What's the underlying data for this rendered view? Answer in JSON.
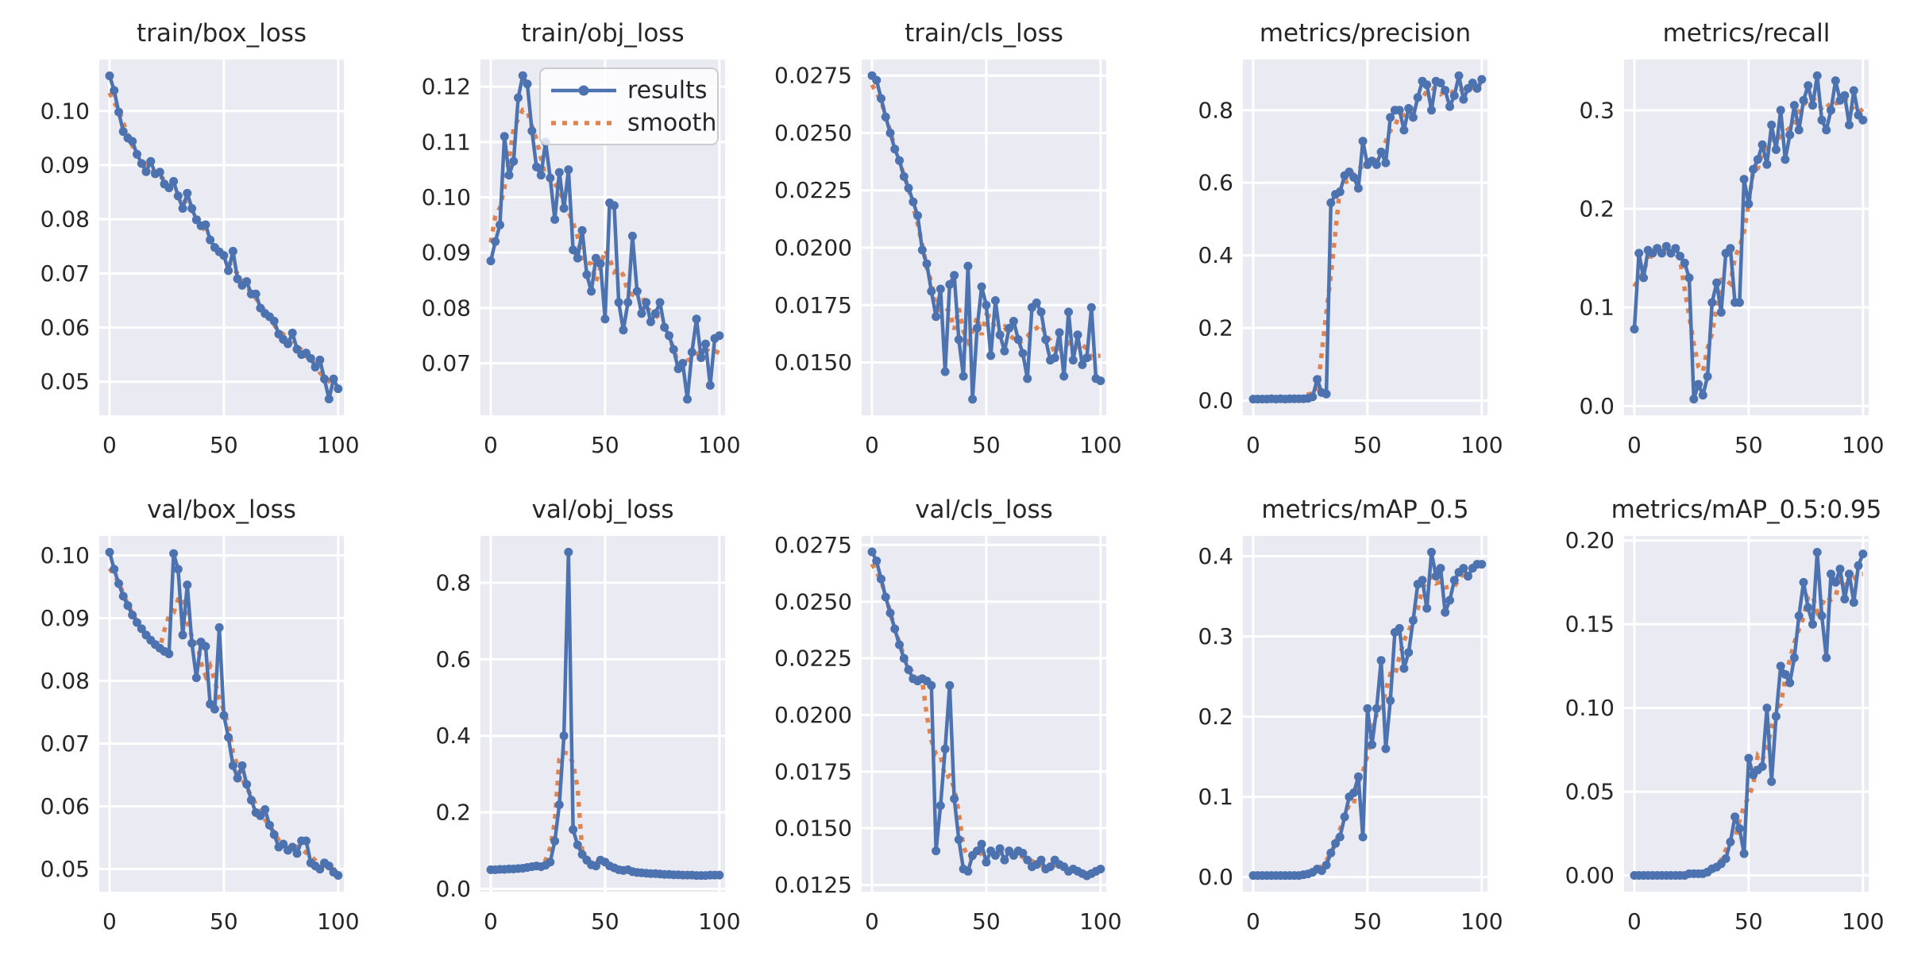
{
  "figure": {
    "background": "#ffffff",
    "axes_background": "#eaeaf2",
    "grid_color": "#ffffff",
    "text_color": "#262626",
    "results_color": "#4c72b0",
    "smooth_color": "#dd8452",
    "legend_face": "#ffffff",
    "legend_edge": "#cccccc"
  },
  "legend": {
    "entries": [
      {
        "label": "results",
        "style": "solid-line-circle-marker",
        "color": "#4c72b0"
      },
      {
        "label": "smooth",
        "style": "dotted-line",
        "color": "#dd8452"
      }
    ],
    "shown_on_chart": "train/obj_loss"
  },
  "chart_data": {
    "type": "line",
    "grid": true,
    "legend_position": "upper-right-of-second-chart",
    "epochs": [
      0,
      2,
      4,
      6,
      8,
      10,
      12,
      14,
      16,
      18,
      20,
      22,
      24,
      26,
      28,
      30,
      32,
      34,
      36,
      38,
      40,
      42,
      44,
      46,
      48,
      50,
      52,
      54,
      56,
      58,
      60,
      62,
      64,
      66,
      68,
      70,
      72,
      74,
      76,
      78,
      80,
      82,
      84,
      86,
      88,
      90,
      92,
      94,
      96,
      98,
      100
    ],
    "smooth_series_note": "dotted orange 'smooth' curve is the moving-average of 'results'",
    "charts": [
      {
        "title": "train/box_loss",
        "xticks": [
          "0",
          "50",
          "100"
        ],
        "yticks": [
          "0.05",
          "0.06",
          "0.07",
          "0.08",
          "0.09",
          "0.10"
        ],
        "xlim": [
          -4.5,
          102.5
        ],
        "ylim": [
          0.0438,
          0.1095
        ],
        "legend": false,
        "values": [
          0.1065,
          0.1038,
          0.0998,
          0.0962,
          0.095,
          0.0944,
          0.092,
          0.0903,
          0.0888,
          0.0907,
          0.0884,
          0.0887,
          0.0865,
          0.0858,
          0.087,
          0.0843,
          0.082,
          0.0848,
          0.082,
          0.0799,
          0.0788,
          0.079,
          0.0762,
          0.0748,
          0.074,
          0.0733,
          0.0705,
          0.0741,
          0.069,
          0.0678,
          0.0685,
          0.0662,
          0.0662,
          0.0636,
          0.0626,
          0.062,
          0.0612,
          0.0588,
          0.0578,
          0.057,
          0.059,
          0.056,
          0.055,
          0.0553,
          0.0543,
          0.0527,
          0.054,
          0.0505,
          0.0468,
          0.0505,
          0.0487
        ]
      },
      {
        "title": "train/obj_loss",
        "xticks": [
          "0",
          "50",
          "100"
        ],
        "yticks": [
          "0.07",
          "0.08",
          "0.09",
          "0.10",
          "0.11",
          "0.12"
        ],
        "xlim": [
          -4.5,
          102.5
        ],
        "ylim": [
          0.0606,
          0.1249
        ],
        "legend": true,
        "values": [
          0.0885,
          0.092,
          0.095,
          0.111,
          0.104,
          0.1065,
          0.118,
          0.122,
          0.1205,
          0.112,
          0.1055,
          0.104,
          0.11,
          0.1035,
          0.096,
          0.1045,
          0.098,
          0.105,
          0.0905,
          0.089,
          0.094,
          0.086,
          0.083,
          0.089,
          0.088,
          0.078,
          0.099,
          0.0985,
          0.081,
          0.076,
          0.081,
          0.093,
          0.083,
          0.079,
          0.081,
          0.0775,
          0.079,
          0.081,
          0.0765,
          0.075,
          0.0725,
          0.069,
          0.07,
          0.0635,
          0.072,
          0.078,
          0.071,
          0.0735,
          0.066,
          0.0745,
          0.075
        ]
      },
      {
        "title": "train/cls_loss",
        "xticks": [
          "0",
          "50",
          "100"
        ],
        "yticks": [
          "0.0150",
          "0.0175",
          "0.0200",
          "0.0225",
          "0.0250",
          "0.0275"
        ],
        "xlim": [
          -4.5,
          102.5
        ],
        "ylim": [
          0.0127,
          0.0282
        ],
        "legend": false,
        "values": [
          0.0275,
          0.0273,
          0.0265,
          0.0257,
          0.025,
          0.0243,
          0.0238,
          0.0231,
          0.0226,
          0.022,
          0.0214,
          0.0199,
          0.0193,
          0.0181,
          0.017,
          0.0182,
          0.0146,
          0.0184,
          0.0188,
          0.016,
          0.0144,
          0.0192,
          0.0134,
          0.0165,
          0.0183,
          0.0175,
          0.0153,
          0.0177,
          0.0162,
          0.0155,
          0.0165,
          0.0168,
          0.016,
          0.0154,
          0.0143,
          0.0174,
          0.0176,
          0.0172,
          0.016,
          0.0151,
          0.0152,
          0.0163,
          0.0144,
          0.0172,
          0.0151,
          0.0162,
          0.0149,
          0.0152,
          0.0174,
          0.0143,
          0.0142
        ]
      },
      {
        "title": "metrics/precision",
        "xticks": [
          "0",
          "50",
          "100"
        ],
        "yticks": [
          "0.0",
          "0.2",
          "0.4",
          "0.6",
          "0.8"
        ],
        "xlim": [
          -4.5,
          102.5
        ],
        "ylim": [
          -0.0406,
          0.9396
        ],
        "legend": false,
        "values": [
          0.004,
          0.004,
          0.004,
          0.004,
          0.005,
          0.004,
          0.005,
          0.004,
          0.005,
          0.005,
          0.005,
          0.005,
          0.006,
          0.01,
          0.058,
          0.022,
          0.018,
          0.545,
          0.568,
          0.575,
          0.62,
          0.63,
          0.615,
          0.585,
          0.715,
          0.65,
          0.66,
          0.65,
          0.685,
          0.655,
          0.78,
          0.8,
          0.8,
          0.745,
          0.805,
          0.78,
          0.835,
          0.88,
          0.87,
          0.8,
          0.88,
          0.875,
          0.855,
          0.81,
          0.84,
          0.895,
          0.83,
          0.86,
          0.875,
          0.86,
          0.885
        ]
      },
      {
        "title": "metrics/recall",
        "xticks": [
          "0",
          "50",
          "100"
        ],
        "yticks": [
          "0.0",
          "0.1",
          "0.2",
          "0.3"
        ],
        "xlim": [
          -4.5,
          102.5
        ],
        "ylim": [
          -0.0094,
          0.3514
        ],
        "legend": false,
        "values": [
          0.078,
          0.155,
          0.13,
          0.158,
          0.155,
          0.16,
          0.155,
          0.162,
          0.155,
          0.16,
          0.152,
          0.145,
          0.13,
          0.007,
          0.022,
          0.011,
          0.03,
          0.105,
          0.125,
          0.095,
          0.155,
          0.16,
          0.105,
          0.105,
          0.23,
          0.205,
          0.24,
          0.25,
          0.265,
          0.245,
          0.285,
          0.26,
          0.3,
          0.25,
          0.275,
          0.305,
          0.28,
          0.31,
          0.325,
          0.305,
          0.335,
          0.29,
          0.28,
          0.3,
          0.33,
          0.31,
          0.315,
          0.285,
          0.32,
          0.295,
          0.29
        ]
      },
      {
        "title": "val/box_loss",
        "xticks": [
          "0",
          "50",
          "100"
        ],
        "yticks": [
          "0.05",
          "0.06",
          "0.07",
          "0.08",
          "0.09",
          "0.10"
        ],
        "xlim": [
          -4.5,
          102.5
        ],
        "ylim": [
          0.0464,
          0.1031
        ],
        "legend": false,
        "values": [
          0.1005,
          0.0978,
          0.0955,
          0.0935,
          0.092,
          0.0905,
          0.0893,
          0.0883,
          0.0873,
          0.0865,
          0.0858,
          0.0852,
          0.0847,
          0.0843,
          0.1003,
          0.0978,
          0.0873,
          0.0953,
          0.086,
          0.0805,
          0.0862,
          0.0855,
          0.0763,
          0.0755,
          0.0885,
          0.0745,
          0.071,
          0.0665,
          0.0645,
          0.0665,
          0.0635,
          0.061,
          0.059,
          0.0585,
          0.0595,
          0.057,
          0.0555,
          0.0535,
          0.054,
          0.053,
          0.0535,
          0.0525,
          0.0545,
          0.0545,
          0.051,
          0.0505,
          0.05,
          0.051,
          0.0505,
          0.0495,
          0.049
        ]
      },
      {
        "title": "val/obj_loss",
        "xticks": [
          "0",
          "50",
          "100"
        ],
        "yticks": [
          "0.0",
          "0.2",
          "0.4",
          "0.6",
          "0.8"
        ],
        "xlim": [
          -4.5,
          102.5
        ],
        "ylim": [
          -0.0073,
          0.9223
        ],
        "legend": false,
        "values": [
          0.05,
          0.05,
          0.051,
          0.051,
          0.052,
          0.052,
          0.053,
          0.054,
          0.056,
          0.058,
          0.06,
          0.058,
          0.062,
          0.07,
          0.125,
          0.22,
          0.4,
          0.88,
          0.155,
          0.115,
          0.09,
          0.075,
          0.063,
          0.06,
          0.075,
          0.07,
          0.06,
          0.055,
          0.05,
          0.048,
          0.05,
          0.045,
          0.043,
          0.042,
          0.041,
          0.04,
          0.04,
          0.039,
          0.038,
          0.038,
          0.037,
          0.037,
          0.036,
          0.036,
          0.036,
          0.035,
          0.035,
          0.035,
          0.036,
          0.036,
          0.036
        ]
      },
      {
        "title": "val/cls_loss",
        "xticks": [
          "0",
          "50",
          "100"
        ],
        "yticks": [
          "0.0125",
          "0.0150",
          "0.0175",
          "0.0200",
          "0.0225",
          "0.0250",
          "0.0275"
        ],
        "xlim": [
          -4.5,
          102.5
        ],
        "ylim": [
          0.0122,
          0.0279
        ],
        "legend": false,
        "values": [
          0.0272,
          0.0268,
          0.026,
          0.0252,
          0.0245,
          0.0238,
          0.0231,
          0.0225,
          0.022,
          0.0216,
          0.0215,
          0.0216,
          0.0215,
          0.0213,
          0.014,
          0.016,
          0.0185,
          0.0213,
          0.0163,
          0.0145,
          0.0132,
          0.0131,
          0.0138,
          0.014,
          0.0143,
          0.0135,
          0.014,
          0.0138,
          0.0141,
          0.0136,
          0.014,
          0.0138,
          0.014,
          0.0139,
          0.0136,
          0.0133,
          0.0134,
          0.0136,
          0.0132,
          0.0133,
          0.0136,
          0.0134,
          0.0133,
          0.0131,
          0.0132,
          0.0131,
          0.013,
          0.0129,
          0.013,
          0.0131,
          0.0132
        ]
      },
      {
        "title": "metrics/mAP_0.5",
        "xticks": [
          "0",
          "50",
          "100"
        ],
        "yticks": [
          "0.0",
          "0.1",
          "0.2",
          "0.3",
          "0.4"
        ],
        "xlim": [
          -4.5,
          102.5
        ],
        "ylim": [
          -0.0182,
          0.4252
        ],
        "legend": false,
        "values": [
          0.002,
          0.002,
          0.002,
          0.002,
          0.002,
          0.002,
          0.002,
          0.002,
          0.002,
          0.002,
          0.002,
          0.003,
          0.004,
          0.006,
          0.01,
          0.008,
          0.015,
          0.03,
          0.042,
          0.05,
          0.075,
          0.1,
          0.105,
          0.125,
          0.05,
          0.21,
          0.165,
          0.21,
          0.27,
          0.16,
          0.22,
          0.305,
          0.31,
          0.26,
          0.28,
          0.32,
          0.365,
          0.37,
          0.335,
          0.405,
          0.375,
          0.385,
          0.33,
          0.345,
          0.37,
          0.38,
          0.385,
          0.375,
          0.385,
          0.39,
          0.39
        ]
      },
      {
        "title": "metrics/mAP_0.5:0.95",
        "xticks": [
          "0",
          "50",
          "100"
        ],
        "yticks": [
          "0.00",
          "0.05",
          "0.10",
          "0.15",
          "0.20"
        ],
        "xlim": [
          -4.5,
          102.5
        ],
        "ylim": [
          -0.0097,
          0.2027
        ],
        "legend": false,
        "values": [
          0.0,
          0.0,
          0.0,
          0.0,
          0.0,
          0.0,
          0.0,
          0.0,
          0.0,
          0.0,
          0.0,
          0.0,
          0.001,
          0.001,
          0.001,
          0.001,
          0.002,
          0.004,
          0.005,
          0.007,
          0.01,
          0.02,
          0.035,
          0.028,
          0.013,
          0.07,
          0.06,
          0.063,
          0.065,
          0.1,
          0.056,
          0.095,
          0.125,
          0.12,
          0.115,
          0.13,
          0.155,
          0.175,
          0.16,
          0.15,
          0.193,
          0.155,
          0.13,
          0.18,
          0.175,
          0.183,
          0.165,
          0.18,
          0.163,
          0.185,
          0.192
        ]
      }
    ]
  }
}
